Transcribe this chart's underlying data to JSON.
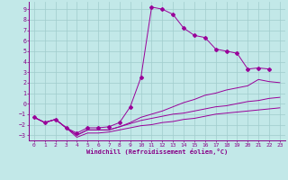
{
  "xlabel": "Windchill (Refroidissement éolien,°C)",
  "xlim": [
    -0.5,
    23.5
  ],
  "ylim": [
    -3.5,
    9.7
  ],
  "yticks": [
    -3,
    -2,
    -1,
    0,
    1,
    2,
    3,
    4,
    5,
    6,
    7,
    8,
    9
  ],
  "xticks": [
    0,
    1,
    2,
    3,
    4,
    5,
    6,
    7,
    8,
    9,
    10,
    11,
    12,
    13,
    14,
    15,
    16,
    17,
    18,
    19,
    20,
    21,
    22,
    23
  ],
  "bg_color": "#c2e8e8",
  "line_color": "#990099",
  "grid_color": "#a0cccc",
  "lines": [
    {
      "x": [
        0,
        1,
        2,
        3,
        4,
        5,
        6,
        7,
        8,
        9,
        10,
        11,
        12,
        13,
        14,
        15,
        16,
        17,
        18,
        19,
        20,
        21,
        22
      ],
      "y": [
        -1.3,
        -1.8,
        -1.5,
        -2.3,
        -2.8,
        -2.3,
        -2.3,
        -2.2,
        -1.8,
        -0.3,
        2.5,
        9.2,
        9.0,
        8.5,
        7.2,
        6.5,
        6.3,
        5.2,
        5.0,
        4.8,
        3.3,
        3.4,
        3.3
      ],
      "marker": true
    },
    {
      "x": [
        0,
        1,
        2,
        3,
        4,
        5,
        6,
        7,
        8,
        9,
        10,
        11,
        12,
        13,
        14,
        15,
        16,
        17,
        18,
        19,
        20,
        21,
        22,
        23
      ],
      "y": [
        -1.3,
        -1.8,
        -1.5,
        -2.3,
        -3.0,
        -2.5,
        -2.5,
        -2.5,
        -2.2,
        -1.8,
        -1.3,
        -1.0,
        -0.7,
        -0.3,
        0.1,
        0.4,
        0.8,
        1.0,
        1.3,
        1.5,
        1.7,
        2.3,
        2.1,
        2.0
      ],
      "marker": false
    },
    {
      "x": [
        0,
        1,
        2,
        3,
        4,
        5,
        6,
        7,
        8,
        9,
        10,
        11,
        12,
        13,
        14,
        15,
        16,
        17,
        18,
        19,
        20,
        21,
        22,
        23
      ],
      "y": [
        -1.3,
        -1.8,
        -1.5,
        -2.3,
        -3.0,
        -2.5,
        -2.5,
        -2.5,
        -2.2,
        -1.9,
        -1.6,
        -1.4,
        -1.2,
        -1.0,
        -0.9,
        -0.7,
        -0.5,
        -0.3,
        -0.2,
        0.0,
        0.2,
        0.3,
        0.5,
        0.6
      ],
      "marker": false
    },
    {
      "x": [
        0,
        1,
        2,
        3,
        4,
        5,
        6,
        7,
        8,
        9,
        10,
        11,
        12,
        13,
        14,
        15,
        16,
        17,
        18,
        19,
        20,
        21,
        22,
        23
      ],
      "y": [
        -1.3,
        -1.8,
        -1.5,
        -2.3,
        -3.2,
        -2.8,
        -2.8,
        -2.7,
        -2.5,
        -2.3,
        -2.1,
        -2.0,
        -1.8,
        -1.7,
        -1.5,
        -1.4,
        -1.2,
        -1.0,
        -0.9,
        -0.8,
        -0.7,
        -0.6,
        -0.5,
        -0.4
      ],
      "marker": false
    }
  ]
}
